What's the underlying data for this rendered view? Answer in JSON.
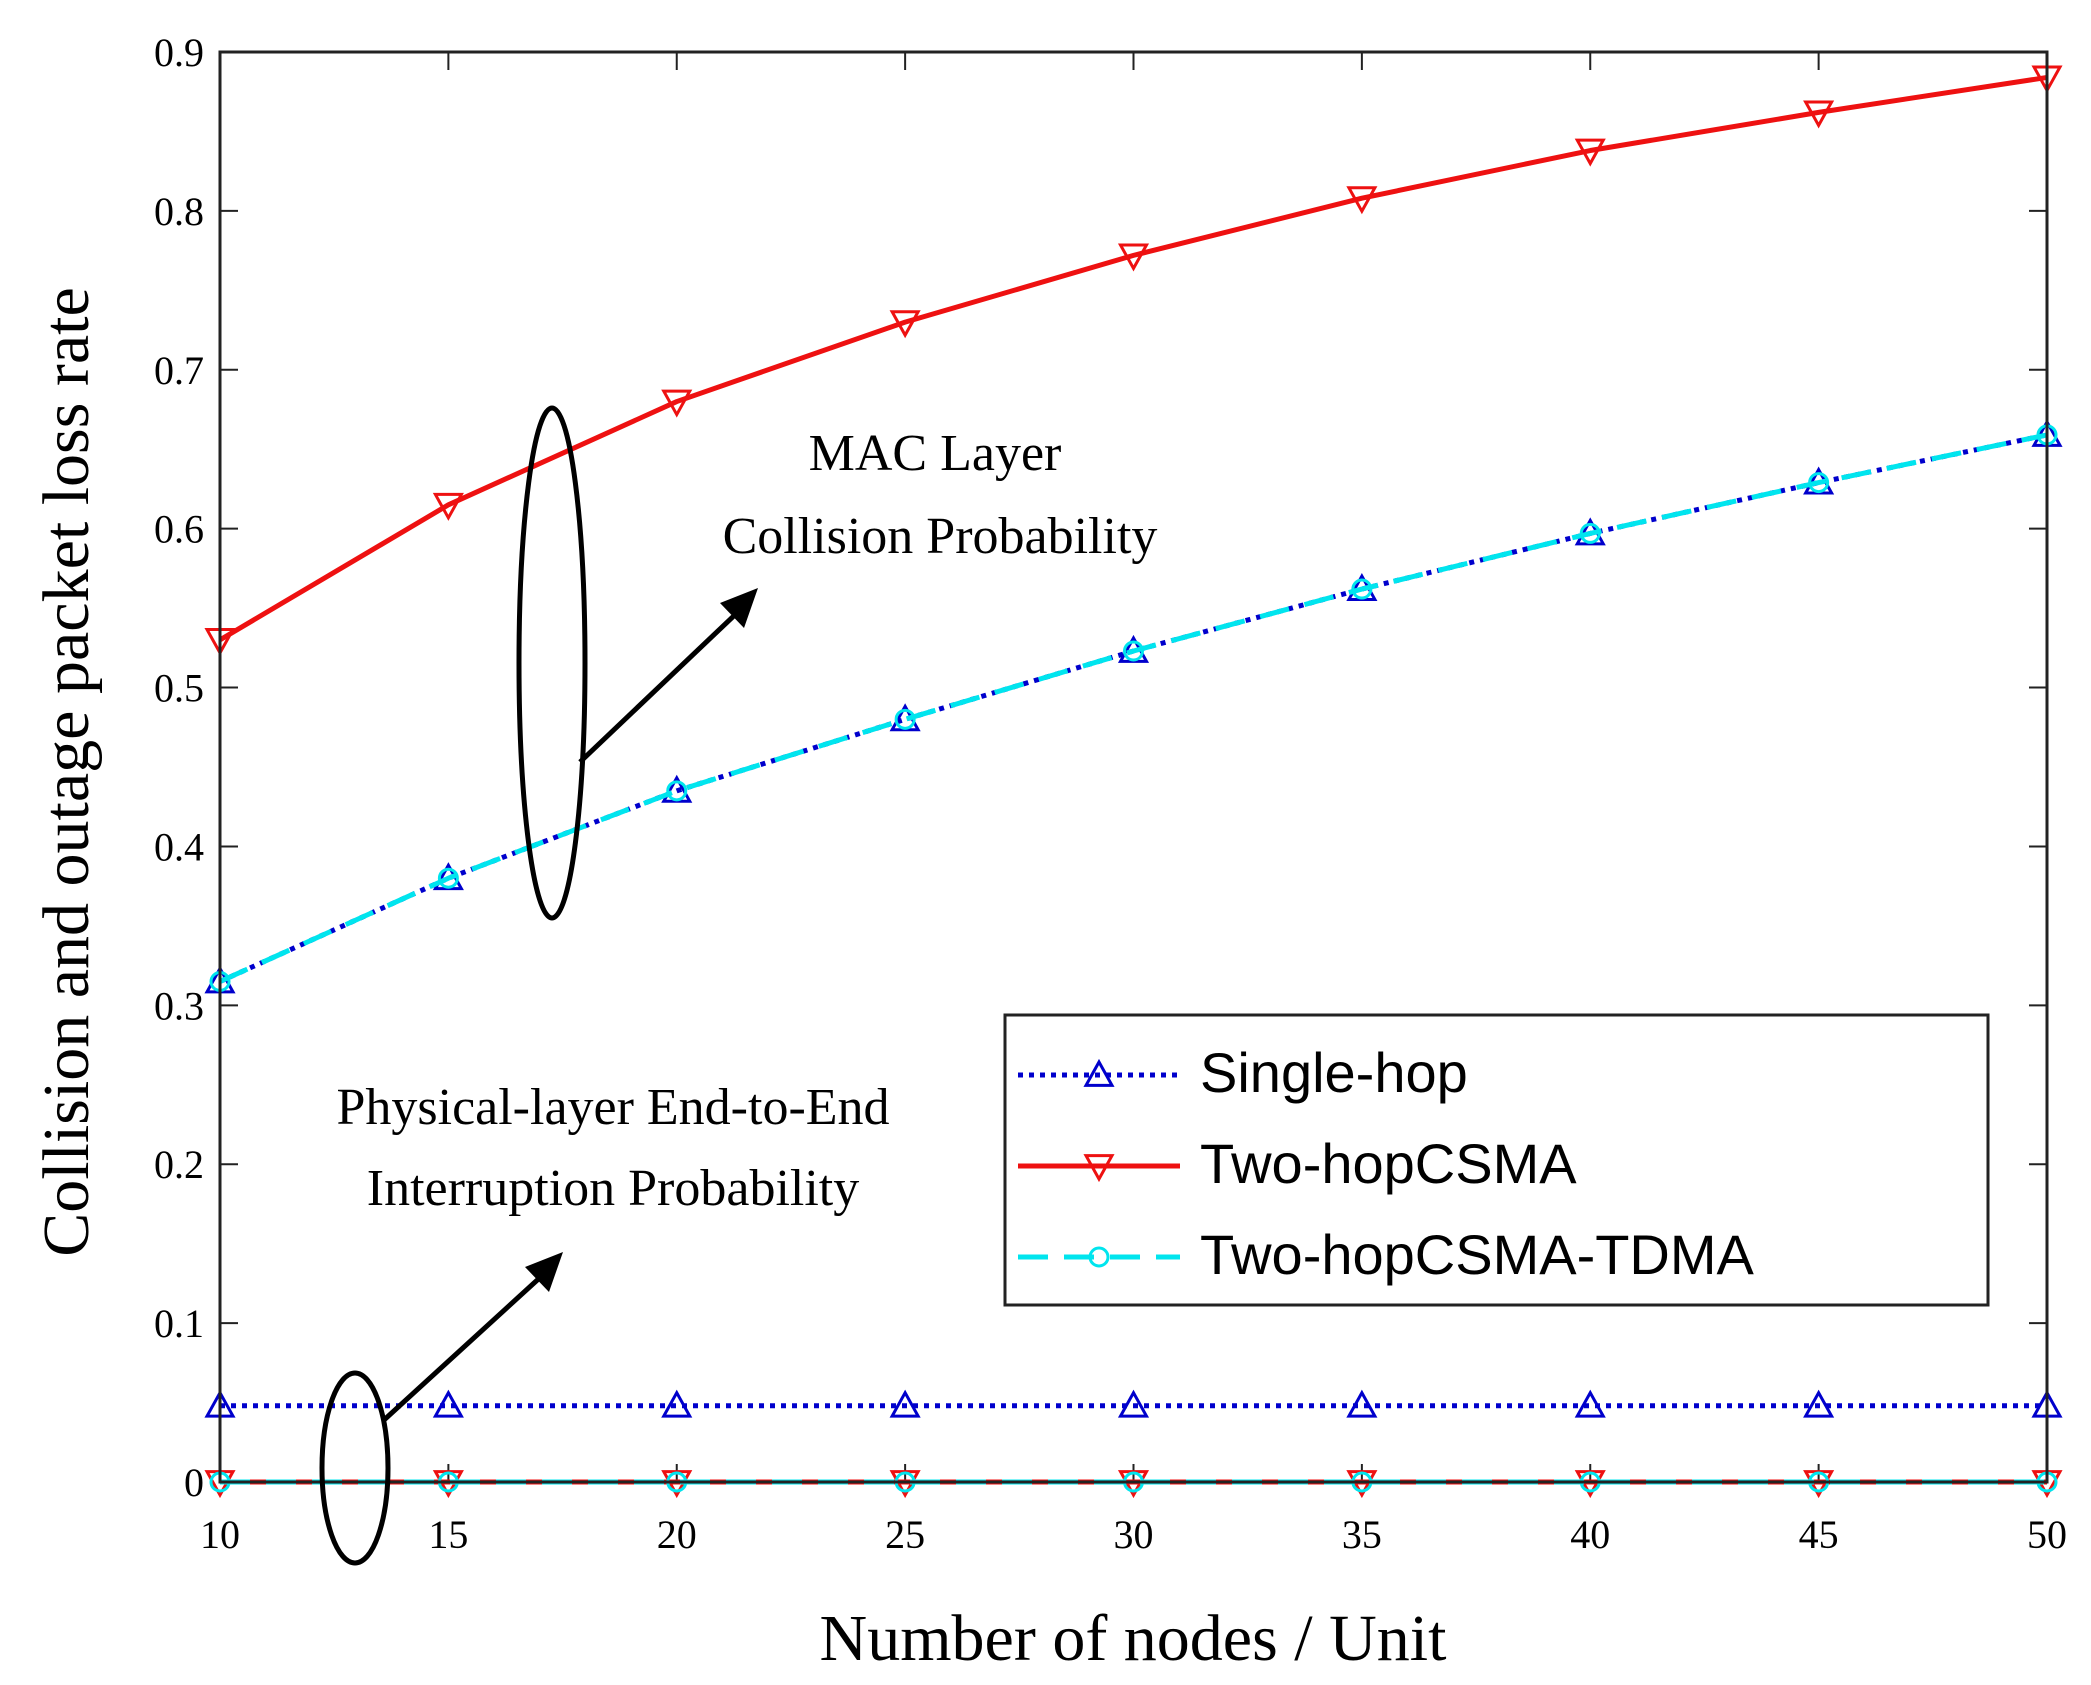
{
  "chart_data": {
    "type": "line",
    "title": "",
    "xlabel": "Number of nodes / Unit",
    "ylabel": "Collision  and outage packet loss rate",
    "xlim": [
      10,
      50
    ],
    "ylim": [
      0,
      0.9
    ],
    "xticks": [
      10,
      15,
      20,
      25,
      30,
      35,
      40,
      45,
      50
    ],
    "yticks": [
      0,
      0.1,
      0.2,
      0.3,
      0.4,
      0.5,
      0.6,
      0.7,
      0.8,
      0.9
    ],
    "ytick_labels": [
      "0",
      "0.1",
      "0.2",
      "0.3",
      "0.4",
      "0.5",
      "0.6",
      "0.7",
      "0.8",
      "0.9"
    ],
    "x": [
      10,
      15,
      20,
      25,
      30,
      35,
      40,
      45,
      50
    ],
    "series": [
      {
        "name": "Single-hop",
        "group": "MAC Layer Collision Probability",
        "values": [
          0.315,
          0.38,
          0.435,
          0.48,
          0.523,
          0.562,
          0.597,
          0.629,
          0.659
        ],
        "color": "#0000cc",
        "dash": "dotted",
        "marker": "triangle-up"
      },
      {
        "name": "Two-hopCSMA",
        "group": "MAC Layer Collision Probability",
        "values": [
          0.53,
          0.615,
          0.68,
          0.73,
          0.772,
          0.808,
          0.838,
          0.862,
          0.884
        ],
        "color": "#ee1111",
        "dash": "solid",
        "marker": "triangle-down"
      },
      {
        "name": "Two-hopCSMA-TDMA",
        "group": "MAC Layer Collision Probability",
        "values": [
          0.315,
          0.38,
          0.435,
          0.48,
          0.523,
          0.562,
          0.597,
          0.629,
          0.659
        ],
        "color": "#00e5ee",
        "dash": "dashed",
        "marker": "circle"
      },
      {
        "name": "Single-hop",
        "group": "Physical-layer End-to-End Interruption Probability",
        "values": [
          0.048,
          0.048,
          0.048,
          0.048,
          0.048,
          0.048,
          0.048,
          0.048,
          0.048
        ],
        "color": "#0000cc",
        "dash": "dotted",
        "marker": "triangle-up"
      },
      {
        "name": "Two-hopCSMA",
        "group": "Physical-layer End-to-End Interruption Probability",
        "values": [
          0.0,
          0.0,
          0.0,
          0.0,
          0.0,
          0.0,
          0.0,
          0.0,
          0.0
        ],
        "color": "#ee1111",
        "dash": "solid",
        "marker": "triangle-down"
      },
      {
        "name": "Two-hopCSMA-TDMA",
        "group": "Physical-layer End-to-End Interruption Probability",
        "values": [
          0.0,
          0.0,
          0.0,
          0.0,
          0.0,
          0.0,
          0.0,
          0.0,
          0.0
        ],
        "color": "#00e5ee",
        "dash": "dashed",
        "marker": "circle"
      }
    ],
    "legend": {
      "placement": "lower-right",
      "entries": [
        "Single-hop",
        "Two-hopCSMA",
        "Two-hopCSMA-TDMA"
      ]
    },
    "annotations": [
      {
        "id": "mac",
        "lines": [
          "MAC Layer",
          "Collision Probability"
        ]
      },
      {
        "id": "phy",
        "lines": [
          "Physical-layer End-to-End",
          "Interruption Probability"
        ]
      }
    ]
  }
}
